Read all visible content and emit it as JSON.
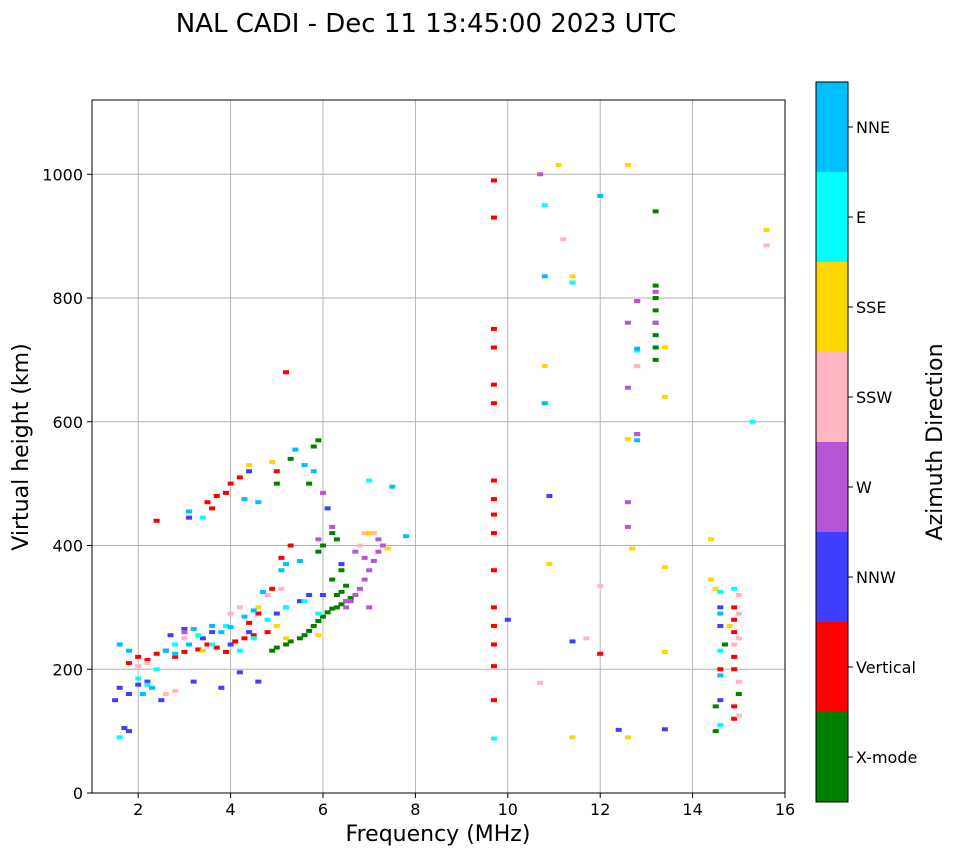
{
  "chart_data": {
    "type": "scatter",
    "title": "NAL CADI - Dec 11 13:45:00 2023 UTC",
    "xlabel": "Frequency (MHz)",
    "ylabel": "Virtual height (km)",
    "xlim": [
      1,
      16
    ],
    "ylim": [
      0,
      1120
    ],
    "xticks": [
      2,
      4,
      6,
      8,
      10,
      12,
      14,
      16
    ],
    "yticks": [
      0,
      200,
      400,
      600,
      800,
      1000
    ],
    "grid": true,
    "colorbar": {
      "title": "Azimuth Direction",
      "categories": [
        {
          "name": "X-mode",
          "color": "#008000"
        },
        {
          "name": "Vertical",
          "color": "#ff0000"
        },
        {
          "name": "NNW",
          "color": "#3f3fff"
        },
        {
          "name": "W",
          "color": "#b855d6"
        },
        {
          "name": "SSW",
          "color": "#ffb6c1"
        },
        {
          "name": "SSE",
          "color": "#ffd700"
        },
        {
          "name": "E",
          "color": "#00ffff"
        },
        {
          "name": "NNE",
          "color": "#00bfff"
        }
      ]
    },
    "series": [
      {
        "name": "X-mode",
        "points": [
          [
            4.9,
            230
          ],
          [
            5.0,
            235
          ],
          [
            5.2,
            240
          ],
          [
            5.3,
            245
          ],
          [
            5.5,
            250
          ],
          [
            5.6,
            255
          ],
          [
            5.7,
            262
          ],
          [
            5.8,
            270
          ],
          [
            5.9,
            278
          ],
          [
            6.0,
            285
          ],
          [
            6.1,
            292
          ],
          [
            6.2,
            298
          ],
          [
            6.3,
            300
          ],
          [
            6.4,
            305
          ],
          [
            6.5,
            310
          ],
          [
            6.6,
            315
          ],
          [
            6.3,
            320
          ],
          [
            6.4,
            325
          ],
          [
            6.5,
            335
          ],
          [
            6.2,
            345
          ],
          [
            6.4,
            360
          ],
          [
            5.9,
            390
          ],
          [
            6.0,
            400
          ],
          [
            6.2,
            420
          ],
          [
            6.3,
            410
          ],
          [
            5.7,
            500
          ],
          [
            5.8,
            560
          ],
          [
            5.9,
            570
          ],
          [
            5.3,
            540
          ],
          [
            5.0,
            500
          ],
          [
            13.2,
            940
          ],
          [
            13.2,
            820
          ],
          [
            13.2,
            800
          ],
          [
            13.2,
            780
          ],
          [
            13.2,
            760
          ],
          [
            13.2,
            740
          ],
          [
            13.2,
            720
          ],
          [
            13.2,
            700
          ],
          [
            14.5,
            100
          ],
          [
            14.5,
            140
          ],
          [
            14.7,
            240
          ],
          [
            15.0,
            160
          ]
        ]
      },
      {
        "name": "Vertical",
        "points": [
          [
            1.8,
            210
          ],
          [
            2.0,
            220
          ],
          [
            2.2,
            215
          ],
          [
            2.4,
            225
          ],
          [
            2.6,
            230
          ],
          [
            2.8,
            220
          ],
          [
            3.0,
            228
          ],
          [
            3.3,
            232
          ],
          [
            3.5,
            240
          ],
          [
            3.7,
            235
          ],
          [
            3.9,
            228
          ],
          [
            4.1,
            245
          ],
          [
            4.3,
            250
          ],
          [
            4.5,
            255
          ],
          [
            4.8,
            260
          ],
          [
            3.5,
            470
          ],
          [
            3.7,
            480
          ],
          [
            3.9,
            485
          ],
          [
            4.0,
            500
          ],
          [
            4.2,
            510
          ],
          [
            3.6,
            460
          ],
          [
            5.2,
            680
          ],
          [
            5.0,
            520
          ],
          [
            4.6,
            290
          ],
          [
            4.4,
            275
          ],
          [
            4.9,
            330
          ],
          [
            5.1,
            380
          ],
          [
            5.3,
            400
          ],
          [
            2.4,
            440
          ],
          [
            9.7,
            990
          ],
          [
            9.7,
            930
          ],
          [
            9.7,
            750
          ],
          [
            9.7,
            720
          ],
          [
            9.7,
            660
          ],
          [
            9.7,
            630
          ],
          [
            9.7,
            505
          ],
          [
            9.7,
            475
          ],
          [
            9.7,
            450
          ],
          [
            9.7,
            420
          ],
          [
            9.7,
            360
          ],
          [
            9.7,
            300
          ],
          [
            9.7,
            270
          ],
          [
            9.7,
            240
          ],
          [
            9.7,
            205
          ],
          [
            9.7,
            150
          ],
          [
            12.8,
            795
          ],
          [
            12.0,
            225
          ],
          [
            14.9,
            300
          ],
          [
            14.9,
            280
          ],
          [
            14.9,
            260
          ],
          [
            14.9,
            220
          ],
          [
            14.9,
            200
          ],
          [
            14.9,
            140
          ],
          [
            14.9,
            120
          ],
          [
            14.6,
            200
          ]
        ]
      },
      {
        "name": "NNW",
        "points": [
          [
            1.5,
            150
          ],
          [
            1.6,
            170
          ],
          [
            1.8,
            160
          ],
          [
            2.0,
            175
          ],
          [
            2.2,
            180
          ],
          [
            2.5,
            150
          ],
          [
            2.7,
            255
          ],
          [
            3.0,
            265
          ],
          [
            3.2,
            180
          ],
          [
            3.4,
            250
          ],
          [
            3.6,
            260
          ],
          [
            3.8,
            170
          ],
          [
            4.0,
            240
          ],
          [
            4.2,
            195
          ],
          [
            4.4,
            260
          ],
          [
            4.6,
            180
          ],
          [
            5.0,
            290
          ],
          [
            5.2,
            300
          ],
          [
            5.5,
            310
          ],
          [
            5.7,
            320
          ],
          [
            6.0,
            320
          ],
          [
            6.4,
            370
          ],
          [
            1.7,
            105
          ],
          [
            1.8,
            100
          ],
          [
            3.1,
            445
          ],
          [
            4.4,
            520
          ],
          [
            6.1,
            460
          ],
          [
            10.0,
            280
          ],
          [
            10.9,
            480
          ],
          [
            11.4,
            245
          ],
          [
            12.4,
            102
          ],
          [
            12.8,
            580
          ],
          [
            13.4,
            103
          ],
          [
            14.6,
            150
          ],
          [
            14.6,
            300
          ],
          [
            14.6,
            270
          ]
        ]
      },
      {
        "name": "W",
        "points": [
          [
            6.5,
            300
          ],
          [
            6.6,
            310
          ],
          [
            6.7,
            320
          ],
          [
            6.8,
            330
          ],
          [
            6.9,
            345
          ],
          [
            7.0,
            360
          ],
          [
            7.1,
            375
          ],
          [
            7.2,
            390
          ],
          [
            7.3,
            400
          ],
          [
            6.9,
            380
          ],
          [
            7.0,
            420
          ],
          [
            7.2,
            410
          ],
          [
            6.7,
            390
          ],
          [
            7.0,
            300
          ],
          [
            5.9,
            410
          ],
          [
            6.2,
            430
          ],
          [
            6.5,
            310
          ],
          [
            6.0,
            485
          ],
          [
            3.0,
            260
          ],
          [
            12.6,
            470
          ],
          [
            12.6,
            430
          ],
          [
            12.6,
            655
          ],
          [
            12.6,
            760
          ],
          [
            12.8,
            795
          ],
          [
            13.2,
            810
          ],
          [
            13.2,
            760
          ],
          [
            12.8,
            690
          ],
          [
            12.8,
            580
          ],
          [
            10.7,
            1000
          ]
        ]
      },
      {
        "name": "SSW",
        "points": [
          [
            2.0,
            205
          ],
          [
            2.2,
            210
          ],
          [
            2.6,
            160
          ],
          [
            2.8,
            165
          ],
          [
            3.0,
            250
          ],
          [
            4.0,
            290
          ],
          [
            4.2,
            300
          ],
          [
            4.8,
            320
          ],
          [
            5.1,
            330
          ],
          [
            6.8,
            400
          ],
          [
            6.9,
            420
          ],
          [
            7.1,
            420
          ],
          [
            10.7,
            178
          ],
          [
            11.2,
            895
          ],
          [
            11.7,
            250
          ],
          [
            12.0,
            335
          ],
          [
            12.8,
            690
          ],
          [
            15.0,
            320
          ],
          [
            15.0,
            290
          ],
          [
            15.0,
            250
          ],
          [
            15.0,
            180
          ],
          [
            15.0,
            125
          ],
          [
            15.6,
            885
          ],
          [
            14.9,
            240
          ]
        ]
      },
      {
        "name": "SSE",
        "points": [
          [
            3.4,
            230
          ],
          [
            4.6,
            300
          ],
          [
            5.0,
            270
          ],
          [
            5.2,
            250
          ],
          [
            5.9,
            255
          ],
          [
            4.4,
            530
          ],
          [
            4.9,
            535
          ],
          [
            7.0,
            420
          ],
          [
            7.4,
            395
          ],
          [
            10.8,
            690
          ],
          [
            10.9,
            370
          ],
          [
            11.1,
            1015
          ],
          [
            11.4,
            835
          ],
          [
            11.4,
            90
          ],
          [
            12.6,
            1015
          ],
          [
            12.7,
            395
          ],
          [
            12.6,
            90
          ],
          [
            12.6,
            572
          ],
          [
            13.4,
            720
          ],
          [
            13.4,
            640
          ],
          [
            13.4,
            365
          ],
          [
            13.4,
            228
          ],
          [
            14.4,
            410
          ],
          [
            14.4,
            345
          ],
          [
            14.5,
            330
          ],
          [
            15.6,
            910
          ],
          [
            14.8,
            270
          ]
        ]
      },
      {
        "name": "E",
        "points": [
          [
            1.6,
            90
          ],
          [
            2.0,
            185
          ],
          [
            2.2,
            175
          ],
          [
            2.4,
            200
          ],
          [
            2.8,
            240
          ],
          [
            3.3,
            255
          ],
          [
            3.6,
            240
          ],
          [
            3.9,
            270
          ],
          [
            4.2,
            230
          ],
          [
            4.5,
            250
          ],
          [
            4.8,
            280
          ],
          [
            5.2,
            300
          ],
          [
            5.6,
            310
          ],
          [
            5.9,
            290
          ],
          [
            3.4,
            445
          ],
          [
            7.0,
            505
          ],
          [
            9.7,
            88
          ],
          [
            10.8,
            950
          ],
          [
            10.8,
            630
          ],
          [
            11.4,
            825
          ],
          [
            12.8,
            715
          ],
          [
            14.6,
            325
          ],
          [
            14.6,
            230
          ],
          [
            14.6,
            110
          ],
          [
            14.9,
            330
          ],
          [
            15.3,
            600
          ]
        ]
      },
      {
        "name": "NNE",
        "points": [
          [
            1.6,
            240
          ],
          [
            1.8,
            230
          ],
          [
            2.1,
            160
          ],
          [
            2.3,
            170
          ],
          [
            2.6,
            230
          ],
          [
            2.8,
            225
          ],
          [
            3.1,
            240
          ],
          [
            3.2,
            265
          ],
          [
            3.6,
            270
          ],
          [
            3.8,
            260
          ],
          [
            4.0,
            268
          ],
          [
            4.3,
            285
          ],
          [
            4.5,
            295
          ],
          [
            4.7,
            325
          ],
          [
            5.1,
            360
          ],
          [
            5.2,
            370
          ],
          [
            5.5,
            375
          ],
          [
            5.6,
            530
          ],
          [
            5.4,
            555
          ],
          [
            5.8,
            520
          ],
          [
            4.6,
            470
          ],
          [
            4.3,
            475
          ],
          [
            3.1,
            455
          ],
          [
            7.5,
            495
          ],
          [
            7.8,
            415
          ],
          [
            10.8,
            835
          ],
          [
            10.8,
            630
          ],
          [
            12.8,
            570
          ],
          [
            12.8,
            718
          ],
          [
            12.0,
            965
          ],
          [
            14.6,
            190
          ],
          [
            14.6,
            290
          ]
        ]
      }
    ]
  }
}
